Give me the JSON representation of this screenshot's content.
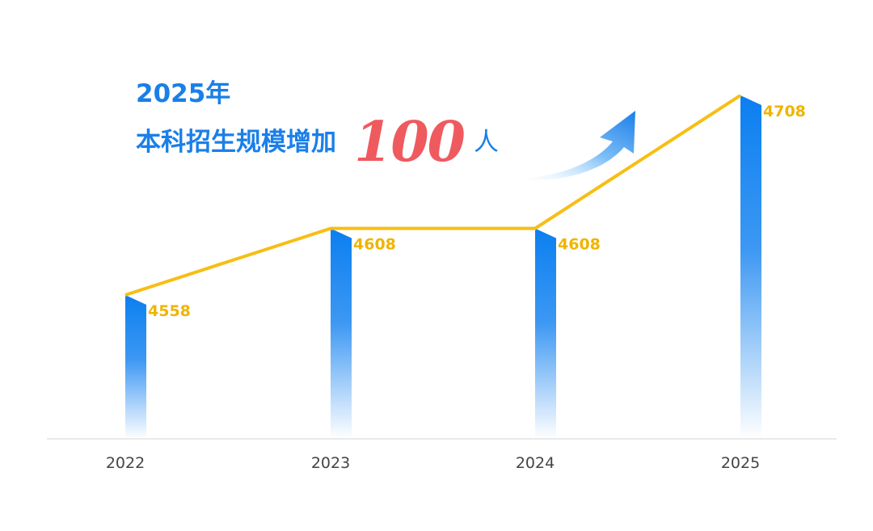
{
  "headline": {
    "line1": "2025年",
    "line2": "本科招生规模增加",
    "highlight": "100",
    "unit": "人"
  },
  "colors": {
    "bar": "#0b7ff0",
    "line": "#f7be13",
    "label": "#f0b400",
    "highlight": "#ef5a5f",
    "axis": "#e2e2e2",
    "tick": "#444444"
  },
  "chart_data": {
    "type": "bar",
    "categories": [
      "2022",
      "2023",
      "2024",
      "2025"
    ],
    "values": [
      4558,
      4608,
      4608,
      4708
    ],
    "data_labels": [
      "4558",
      "4608",
      "4608",
      "4708"
    ],
    "overlay": "line",
    "arrow_icon": "up-trend-arrow-icon",
    "title": "",
    "xlabel": "",
    "ylabel": ""
  }
}
